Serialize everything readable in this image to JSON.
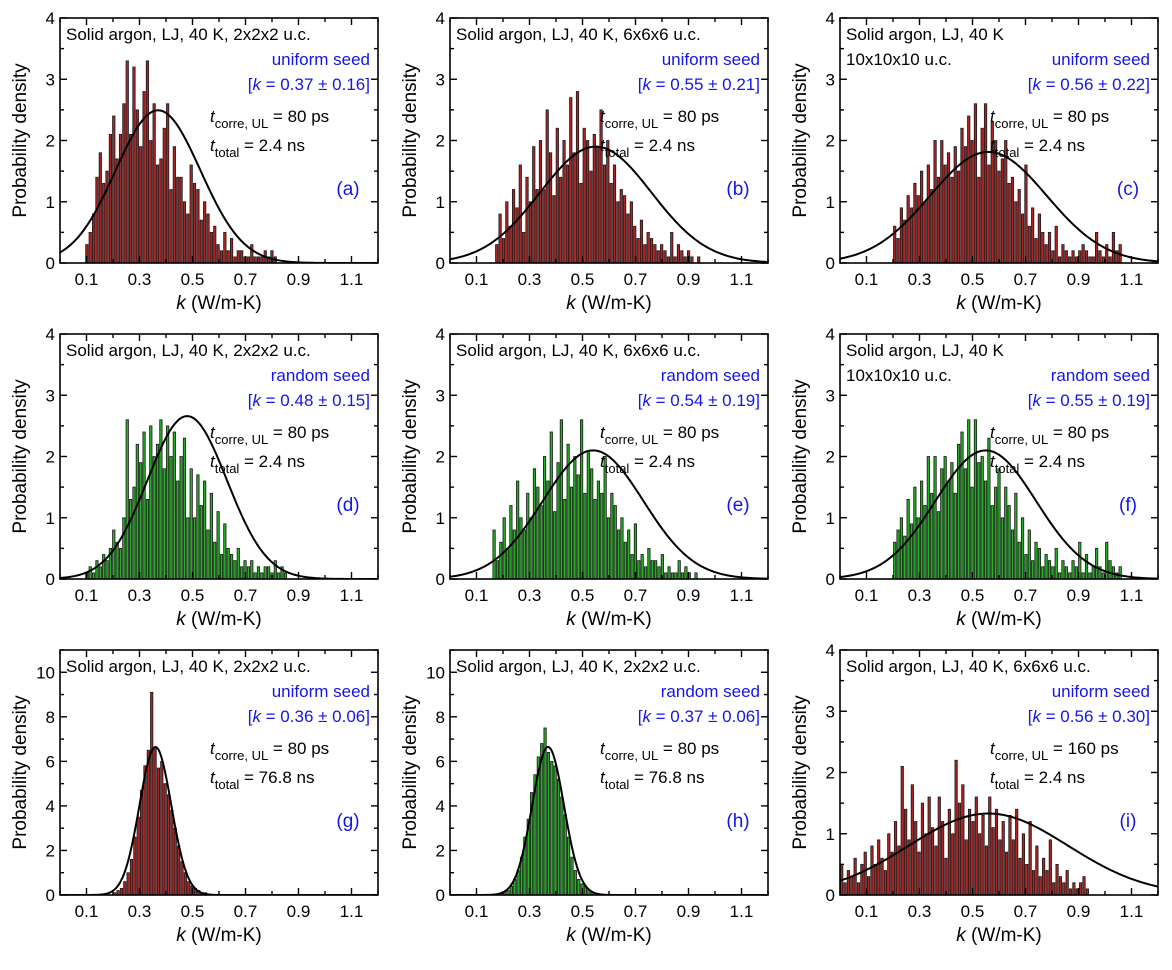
{
  "colors": {
    "red_bar": "#B22222",
    "green_bar": "#22B222",
    "blue_text": "#1515E6",
    "black": "#000000"
  },
  "chart_data": [
    {
      "type": "bar",
      "panel_label": "(a)",
      "title_lines": [
        "Solid argon, LJ, 40 K, 2x2x2 u.c."
      ],
      "seed": "uniform seed",
      "k_mean": "0.37",
      "k_err": "0.16",
      "tcorr": "80 ps",
      "ttotal": "2.4 ns",
      "xlim": [
        0.0,
        1.2
      ],
      "ylim": [
        0,
        4
      ],
      "xticks": [
        "0.1",
        "0.3",
        "0.5",
        "0.7",
        "0.9",
        "1.1"
      ],
      "yticks": [
        "0",
        "1",
        "2",
        "3",
        "4"
      ],
      "xlabel_k": "k",
      "xlabel_units": "(W/m-K)",
      "ylabel": "Probability density",
      "bar_color": "red",
      "fit": {
        "mu": 0.37,
        "sigma": 0.16
      },
      "bars": {
        "start": 0.095,
        "width": 0.0127,
        "values": [
          0.3,
          0.5,
          0.8,
          1.4,
          1.8,
          1.3,
          1.5,
          2.1,
          2.4,
          1.7,
          2.1,
          2.6,
          3.3,
          2.1,
          3.2,
          2.5,
          1.9,
          2.8,
          3.3,
          2.0,
          2.6,
          1.6,
          1.7,
          2.2,
          2.6,
          1.2,
          1.9,
          1.4,
          1.4,
          1.0,
          0.8,
          1.6,
          1.3,
          1.2,
          0.7,
          1.0,
          0.8,
          0.5,
          0.6,
          0.3,
          0.2,
          0.5,
          0.2,
          0.4,
          0.1,
          0.2,
          0.2,
          0.1,
          0.1,
          0.3,
          0.1,
          0.1,
          0.1,
          0.2,
          0.1,
          0.2,
          0.1,
          0,
          0,
          0,
          0,
          0,
          0,
          0,
          0,
          0,
          0,
          0,
          0,
          0,
          0
        ]
      }
    },
    {
      "type": "bar",
      "panel_label": "(b)",
      "title_lines": [
        "Solid argon, LJ, 40 K, 6x6x6 u.c."
      ],
      "seed": "uniform seed",
      "k_mean": "0.55",
      "k_err": "0.21",
      "tcorr": "80 ps",
      "ttotal": "2.4 ns",
      "xlim": [
        0.0,
        1.2
      ],
      "ylim": [
        0,
        4
      ],
      "xticks": [
        "0.1",
        "0.3",
        "0.5",
        "0.7",
        "0.9",
        "1.1"
      ],
      "yticks": [
        "0",
        "1",
        "2",
        "3",
        "4"
      ],
      "xlabel_k": "k",
      "xlabel_units": "(W/m-K)",
      "ylabel": "Probability density",
      "bar_color": "red",
      "fit": {
        "mu": 0.55,
        "sigma": 0.21
      },
      "bars": {
        "start": 0.17,
        "width": 0.0127,
        "values": [
          0.3,
          0.8,
          0.4,
          1.0,
          0.6,
          1.2,
          0.9,
          1.6,
          0.5,
          1.4,
          1.0,
          1.9,
          1.2,
          2.0,
          1.2,
          2.5,
          1.8,
          1.1,
          2.2,
          1.4,
          2.0,
          1.6,
          2.7,
          1.8,
          2.8,
          1.3,
          2.2,
          2.0,
          1.5,
          2.1,
          1.9,
          2.5,
          1.6,
          2.0,
          1.3,
          1.6,
          1.0,
          1.2,
          1.1,
          0.8,
          1.0,
          0.6,
          0.4,
          0.7,
          0.3,
          0.5,
          0.4,
          0.3,
          0.2,
          0.3,
          0.2,
          0.1,
          0.5,
          0.1,
          0.3,
          0.2,
          0.1,
          0.2,
          0.1,
          0,
          0.1
        ]
      }
    },
    {
      "type": "bar",
      "panel_label": "(c)",
      "title_lines": [
        "Solid argon, LJ, 40 K",
        "10x10x10 u.c."
      ],
      "seed": "uniform seed",
      "k_mean": "0.56",
      "k_err": "0.22",
      "tcorr": "80 ps",
      "ttotal": "2.4 ns",
      "xlim": [
        0.0,
        1.2
      ],
      "ylim": [
        0,
        4
      ],
      "xticks": [
        "0.1",
        "0.3",
        "0.5",
        "0.7",
        "0.9",
        "1.1"
      ],
      "yticks": [
        "0",
        "1",
        "2",
        "3",
        "4"
      ],
      "xlabel_k": "k",
      "xlabel_units": "(W/m-K)",
      "ylabel": "Probability density",
      "bar_color": "red",
      "fit": {
        "mu": 0.56,
        "sigma": 0.22
      },
      "bars": {
        "start": 0.2,
        "width": 0.0127,
        "values": [
          0.6,
          0.4,
          0.9,
          0.7,
          1.1,
          0.9,
          1.3,
          1.1,
          1.5,
          1.0,
          1.6,
          1.2,
          2.0,
          1.4,
          2.0,
          1.6,
          1.8,
          1.4,
          1.9,
          1.5,
          2.2,
          1.9,
          2.4,
          2.0,
          2.6,
          1.4,
          2.2,
          2.6,
          1.6,
          2.3,
          2.0,
          1.5,
          1.7,
          2.0,
          1.3,
          1.4,
          1.0,
          1.2,
          0.8,
          1.6,
          0.6,
          0.9,
          0.4,
          0.8,
          0.5,
          0.3,
          0.5,
          0.2,
          0.6,
          0.1,
          0.3,
          0.2,
          0.1,
          0.2,
          0.1,
          0.2,
          0.3,
          0.2,
          0.1,
          0.1,
          0.5,
          0.2,
          0.1,
          0.3,
          0.1,
          0.5,
          0.2,
          0.3
        ]
      }
    },
    {
      "type": "bar",
      "panel_label": "(d)",
      "title_lines": [
        "Solid argon, LJ, 40 K, 2x2x2 u.c."
      ],
      "seed": "random seed",
      "k_mean": "0.48",
      "k_err": "0.15",
      "tcorr": "80 ps",
      "ttotal": "2.4 ns",
      "xlim": [
        0.0,
        1.2
      ],
      "ylim": [
        0,
        4
      ],
      "xticks": [
        "0.1",
        "0.3",
        "0.5",
        "0.7",
        "0.9",
        "1.1"
      ],
      "yticks": [
        "0",
        "1",
        "2",
        "3",
        "4"
      ],
      "xlabel_k": "k",
      "xlabel_units": "(W/m-K)",
      "ylabel": "Probability density",
      "bar_color": "green",
      "fit": {
        "mu": 0.48,
        "sigma": 0.15
      },
      "bars": {
        "start": 0.095,
        "width": 0.0127,
        "values": [
          0.1,
          0.2,
          0.1,
          0.3,
          0.2,
          0.4,
          0.3,
          0.5,
          0.8,
          0.6,
          0.5,
          1.0,
          2.6,
          1.3,
          1.5,
          2.2,
          1.9,
          2.4,
          1.3,
          2.5,
          2.0,
          2.2,
          2.6,
          1.8,
          2.5,
          2.0,
          2.4,
          1.6,
          2.0,
          2.3,
          1.0,
          1.8,
          1.0,
          1.7,
          1.2,
          1.6,
          0.8,
          1.4,
          0.6,
          1.1,
          0.4,
          0.9,
          0.5,
          0.4,
          0.3,
          0.5,
          0.2,
          0.3,
          0.2,
          0.3,
          0.1,
          0.2,
          0.1,
          0.2,
          0.2,
          0.1,
          0.3,
          0.1,
          0.2,
          0.1
        ]
      }
    },
    {
      "type": "bar",
      "panel_label": "(e)",
      "title_lines": [
        "Solid argon, LJ, 40 K, 6x6x6 u.c."
      ],
      "seed": "random seed",
      "k_mean": "0.54",
      "k_err": "0.19",
      "tcorr": "80 ps",
      "ttotal": "2.4 ns",
      "xlim": [
        0.0,
        1.2
      ],
      "ylim": [
        0,
        4
      ],
      "xticks": [
        "0.1",
        "0.3",
        "0.5",
        "0.7",
        "0.9",
        "1.1"
      ],
      "yticks": [
        "0",
        "1",
        "2",
        "3",
        "4"
      ],
      "xlabel_k": "k",
      "xlabel_units": "(W/m-K)",
      "ylabel": "Probability density",
      "bar_color": "green",
      "fit": {
        "mu": 0.54,
        "sigma": 0.19
      },
      "bars": {
        "start": 0.16,
        "width": 0.0127,
        "values": [
          0.8,
          0.3,
          0.6,
          1.0,
          0.5,
          1.2,
          0.8,
          1.6,
          1.0,
          0.8,
          1.4,
          1.0,
          1.8,
          1.5,
          1.2,
          2.0,
          1.6,
          2.4,
          1.1,
          1.9,
          2.6,
          1.3,
          2.2,
          1.5,
          2.0,
          1.7,
          2.6,
          1.4,
          2.1,
          1.8,
          1.3,
          1.6,
          1.4,
          2.0,
          1.0,
          1.4,
          1.2,
          0.8,
          1.0,
          0.6,
          0.8,
          0.4,
          0.9,
          0.3,
          0.4,
          0.2,
          0.5,
          0.3,
          0.3,
          0.2,
          0.4,
          0.1,
          0.2,
          0.1,
          0.1,
          0.3,
          0.1,
          0.2,
          0.1,
          0,
          0.1
        ]
      }
    },
    {
      "type": "bar",
      "panel_label": "(f)",
      "title_lines": [
        "Solid argon, LJ, 40 K",
        "10x10x10 u.c."
      ],
      "seed": "random seed",
      "k_mean": "0.55",
      "k_err": "0.19",
      "tcorr": "80 ps",
      "ttotal": "2.4 ns",
      "xlim": [
        0.0,
        1.2
      ],
      "ylim": [
        0,
        4
      ],
      "xticks": [
        "0.1",
        "0.3",
        "0.5",
        "0.7",
        "0.9",
        "1.1"
      ],
      "yticks": [
        "0",
        "1",
        "2",
        "3",
        "4"
      ],
      "xlabel_k": "k",
      "xlabel_units": "(W/m-K)",
      "ylabel": "Probability density",
      "bar_color": "green",
      "fit": {
        "mu": 0.55,
        "sigma": 0.19
      },
      "bars": {
        "start": 0.2,
        "width": 0.0127,
        "values": [
          0.6,
          0.8,
          1.0,
          0.7,
          1.3,
          0.9,
          1.5,
          1.0,
          1.6,
          1.2,
          2.0,
          1.4,
          2.0,
          1.1,
          1.8,
          2.0,
          1.6,
          1.9,
          1.4,
          2.2,
          2.4,
          1.8,
          2.6,
          1.5,
          2.6,
          1.9,
          2.0,
          1.6,
          2.3,
          1.2,
          1.5,
          1.8,
          1.0,
          1.5,
          1.2,
          0.8,
          1.4,
          0.6,
          1.0,
          0.4,
          0.8,
          0.3,
          0.6,
          0.5,
          0.2,
          0.4,
          0.3,
          0.2,
          0.5,
          0.1,
          0.3,
          0.2,
          0.1,
          0.3,
          0.2,
          0.6,
          0.1,
          0.4,
          0.1,
          0.2,
          0.5,
          0.2,
          0.1,
          0.6,
          0.3,
          0.2,
          0.1,
          0.2
        ]
      }
    },
    {
      "type": "bar",
      "panel_label": "(g)",
      "title_lines": [
        "Solid argon, LJ, 40 K, 2x2x2 u.c."
      ],
      "seed": "uniform seed",
      "k_mean": "0.36",
      "k_err": "0.06",
      "tcorr": "80 ps",
      "ttotal": "76.8 ns",
      "xlim": [
        0.0,
        1.2
      ],
      "ylim": [
        0,
        11
      ],
      "xticks": [
        "0.1",
        "0.3",
        "0.5",
        "0.7",
        "0.9",
        "1.1"
      ],
      "yticks": [
        "0",
        "2",
        "4",
        "6",
        "8",
        "10"
      ],
      "xlabel_k": "k",
      "xlabel_units": "(W/m-K)",
      "ylabel": "Probability density",
      "bar_color": "red",
      "fit": {
        "mu": 0.36,
        "sigma": 0.06
      },
      "bars": {
        "start": 0.2,
        "width": 0.0127,
        "values": [
          0.1,
          0.2,
          0.3,
          0.6,
          1.0,
          1.6,
          2.6,
          3.5,
          4.7,
          5.8,
          6.5,
          9.1,
          6.6,
          5.7,
          6.0,
          5.0,
          4.5,
          3.8,
          3.0,
          2.2,
          1.5,
          1.0,
          0.6,
          0.4,
          0.3,
          0.2,
          0.1,
          0.1
        ]
      }
    },
    {
      "type": "bar",
      "panel_label": "(h)",
      "title_lines": [
        "Solid argon, LJ, 40 K, 2x2x2 u.c."
      ],
      "seed": "random seed",
      "k_mean": "0.37",
      "k_err": "0.06",
      "tcorr": "80 ps",
      "ttotal": "76.8 ns",
      "xlim": [
        0.0,
        1.2
      ],
      "ylim": [
        0,
        11
      ],
      "xticks": [
        "0.1",
        "0.3",
        "0.5",
        "0.7",
        "0.9",
        "1.1"
      ],
      "yticks": [
        "0",
        "2",
        "4",
        "6",
        "8",
        "10"
      ],
      "xlabel_k": "k",
      "xlabel_units": "(W/m-K)",
      "ylabel": "Probability density",
      "bar_color": "green",
      "fit": {
        "mu": 0.37,
        "sigma": 0.06
      },
      "bars": {
        "start": 0.2,
        "width": 0.0127,
        "values": [
          0.1,
          0.2,
          0.4,
          0.7,
          1.1,
          1.7,
          2.6,
          3.4,
          4.6,
          5.4,
          6.2,
          6.8,
          7.5,
          6.4,
          6.0,
          5.8,
          5.2,
          4.4,
          3.6,
          2.6,
          1.7,
          1.1,
          0.7,
          0.5,
          0.4,
          0.2,
          0.1
        ]
      }
    },
    {
      "type": "bar",
      "panel_label": "(i)",
      "title_lines": [
        "Solid argon, LJ, 40 K, 6x6x6 u.c."
      ],
      "seed": "uniform seed",
      "k_mean": "0.56",
      "k_err": "0.30",
      "tcorr": "160 ps",
      "ttotal": "2.4 ns",
      "xlim": [
        0.0,
        1.2
      ],
      "ylim": [
        0,
        4
      ],
      "xticks": [
        "0.1",
        "0.3",
        "0.5",
        "0.7",
        "0.9",
        "1.1"
      ],
      "yticks": [
        "0",
        "1",
        "2",
        "3",
        "4"
      ],
      "xlabel_k": "k",
      "xlabel_units": "(W/m-K)",
      "ylabel": "Probability density",
      "bar_color": "red",
      "fit": {
        "mu": 0.56,
        "sigma": 0.3
      },
      "bars": {
        "start": 0.0,
        "width": 0.0127,
        "values": [
          0.5,
          0.2,
          0.4,
          0.3,
          0.6,
          0.2,
          0.5,
          0.7,
          0.3,
          0.8,
          0.5,
          0.9,
          0.6,
          0.4,
          1.0,
          0.7,
          1.2,
          0.8,
          2.1,
          1.4,
          0.9,
          1.8,
          1.2,
          0.7,
          1.5,
          1.0,
          1.6,
          1.1,
          0.8,
          1.6,
          1.2,
          0.6,
          1.4,
          1.0,
          2.2,
          1.5,
          1.8,
          0.9,
          1.4,
          1.2,
          1.6,
          1.0,
          1.3,
          0.8,
          1.6,
          1.1,
          1.4,
          0.9,
          1.2,
          0.7,
          1.3,
          0.9,
          1.4,
          0.6,
          1.0,
          0.5,
          1.2,
          0.4,
          0.8,
          0.3,
          0.6,
          0.4,
          0.9,
          0.2,
          0.5,
          0.3,
          0.2,
          0.4,
          0.1,
          0.2,
          0.1,
          0.2,
          0.3,
          0.1
        ]
      }
    }
  ]
}
